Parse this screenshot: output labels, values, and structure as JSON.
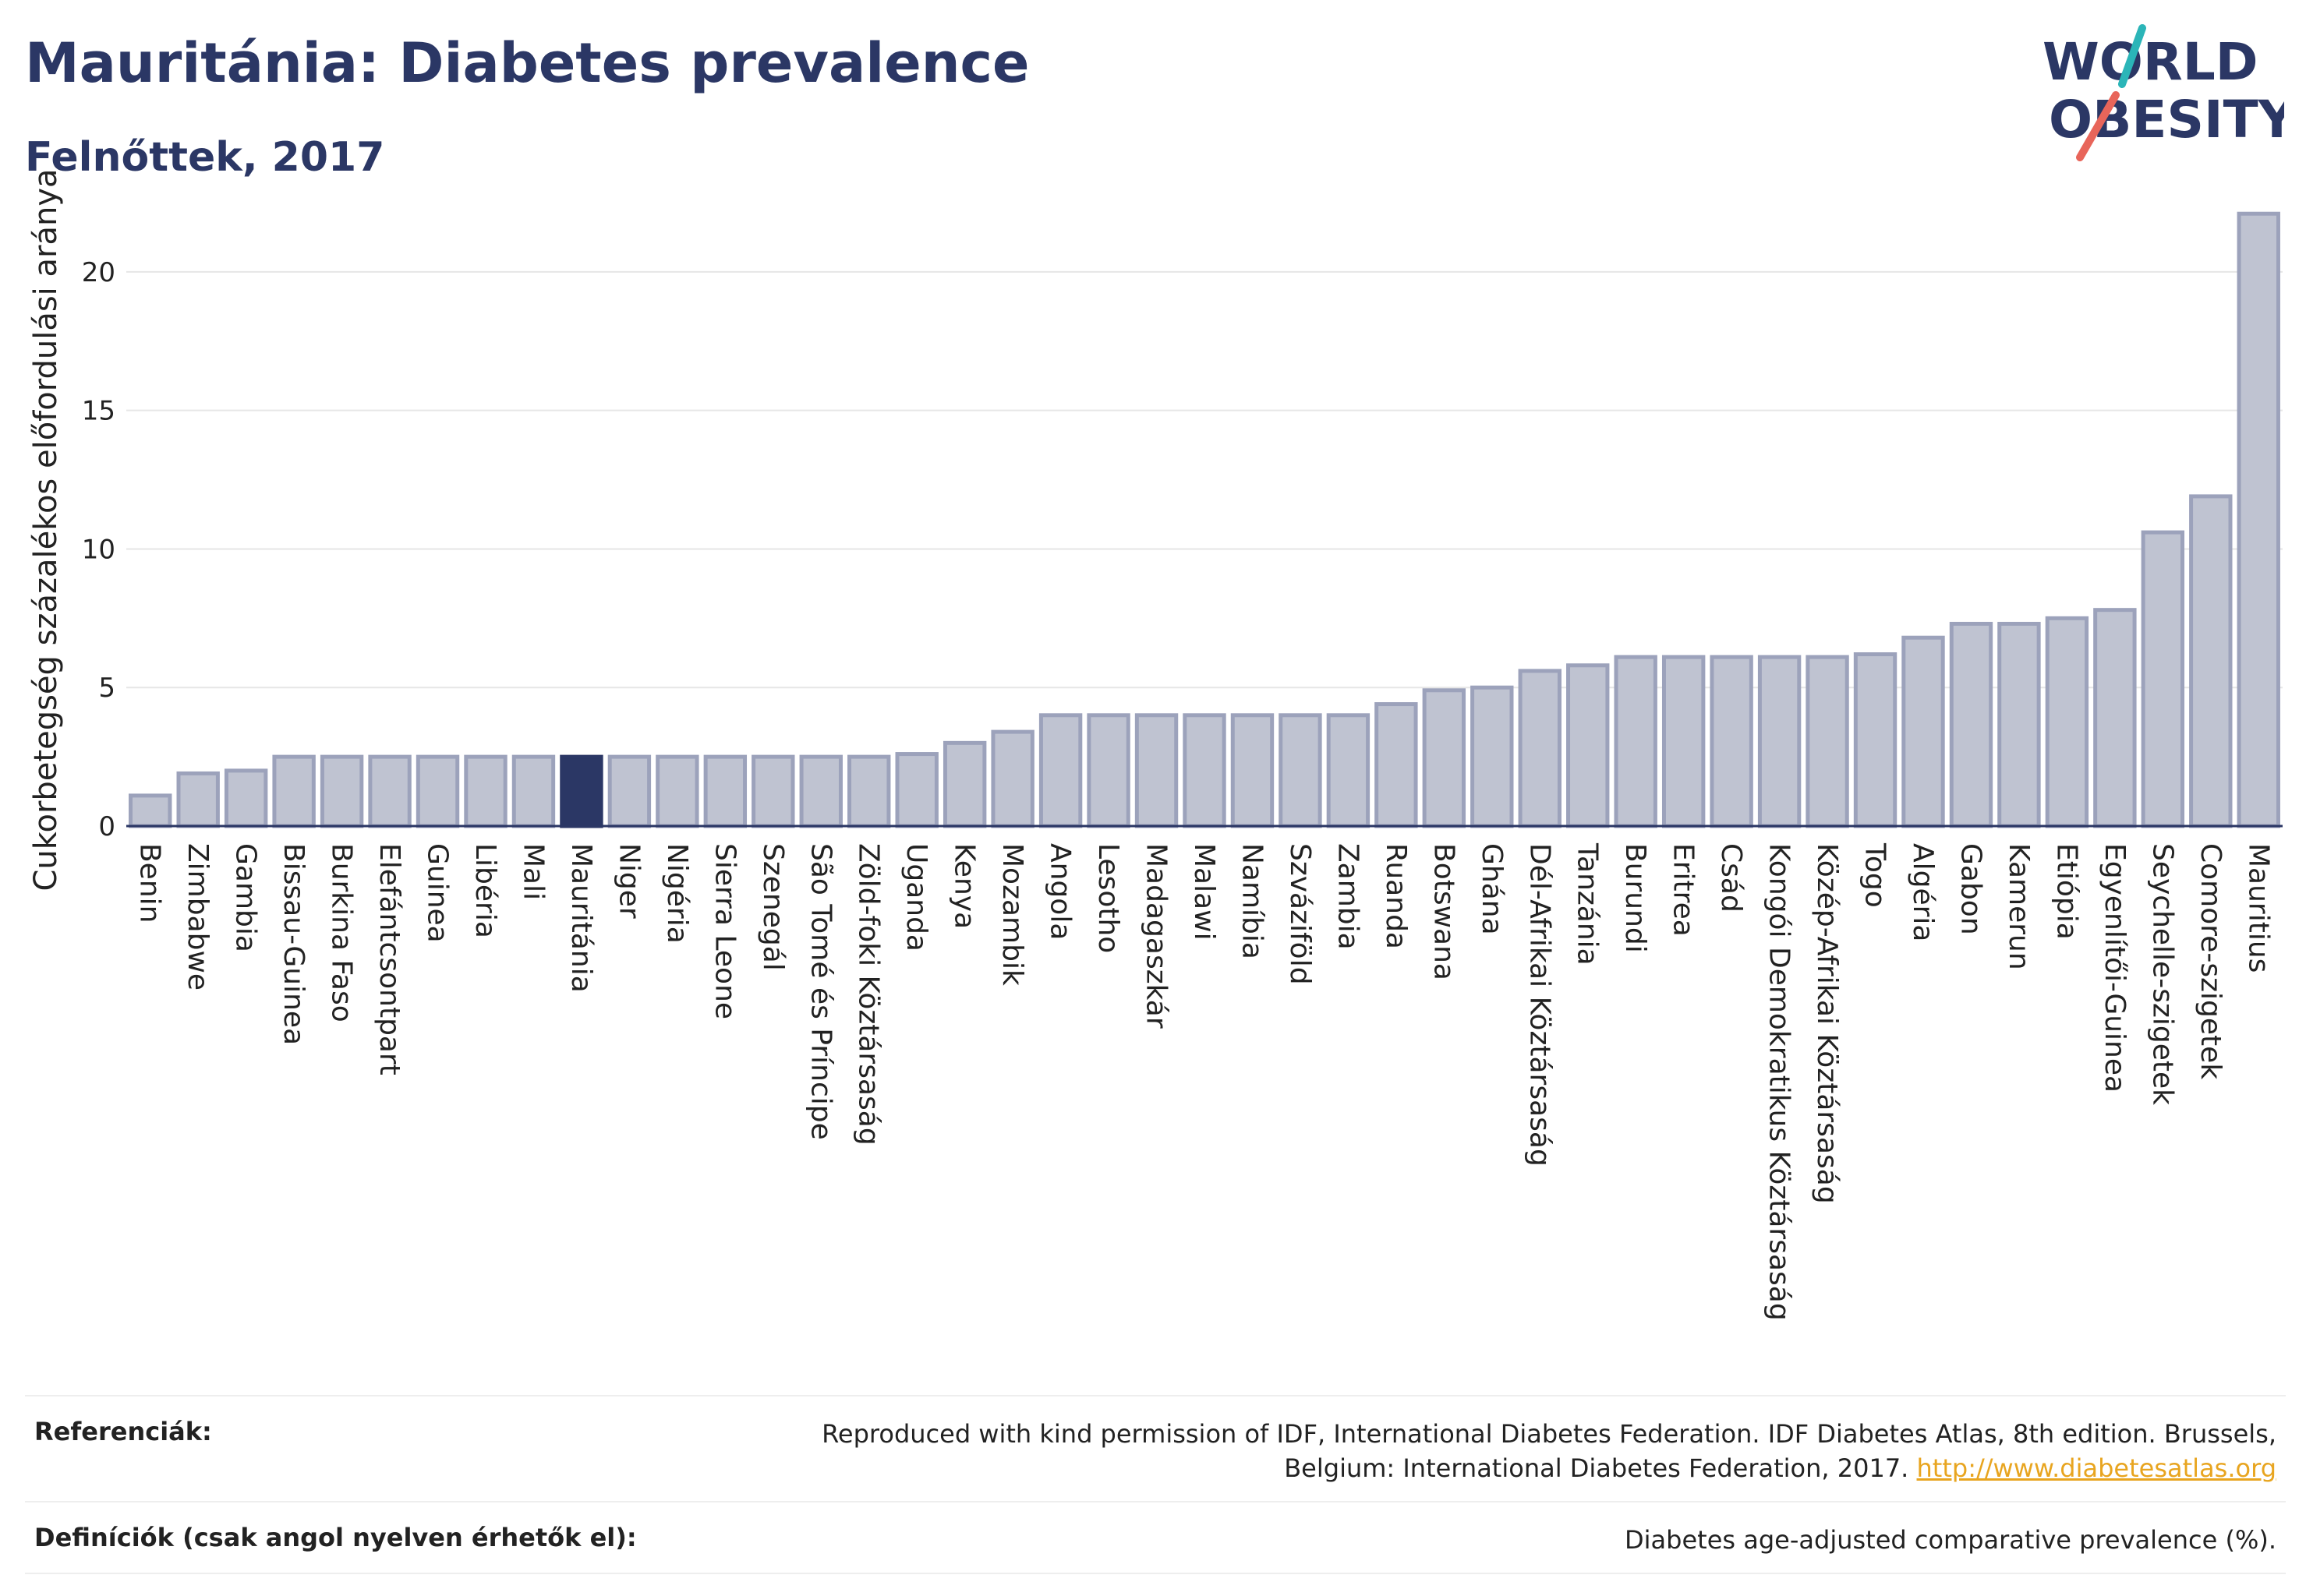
{
  "header": {
    "title": "Mauritánia: Diabetes prevalence",
    "subtitle": "Felnőttek, 2017"
  },
  "logo": {
    "line1": "WORLD",
    "line2": "OBESITY",
    "colors": {
      "text": "#2b3765",
      "teal": "#2bb5b8",
      "coral": "#e8655a"
    }
  },
  "chart_data": {
    "type": "bar",
    "ylabel": "Cukorbetegség százalékos előfordulási aránya",
    "ylim": [
      0,
      22.5
    ],
    "yticks": [
      0,
      5,
      10,
      15,
      20
    ],
    "grid": true,
    "highlight": "Mauritánia",
    "colors": {
      "bar": "#bfc3d1",
      "bar_stroke": "#9ca2bb",
      "highlight": "#2b3765"
    },
    "categories": [
      "Benin",
      "Zimbabwe",
      "Gambia",
      "Bissau-Guinea",
      "Burkina Faso",
      "Elefántcsontpart",
      "Guinea",
      "Libéria",
      "Mali",
      "Mauritánia",
      "Niger",
      "Nigéria",
      "Sierra Leone",
      "Szenegál",
      "São Tomé és Príncipe",
      "Zöld-foki Köztársaság",
      "Uganda",
      "Kenya",
      "Mozambik",
      "Angola",
      "Lesotho",
      "Madagaszkár",
      "Malawi",
      "Namíbia",
      "Szváziföld",
      "Zambia",
      "Ruanda",
      "Botswana",
      "Ghána",
      "Dél-Afrikai Köztársaság",
      "Tanzánia",
      "Burundi",
      "Eritrea",
      "Csád",
      "Kongói Demokratikus Köztársaság",
      "Közép-Afrikai Köztársaság",
      "Togo",
      "Algéria",
      "Gabon",
      "Kamerun",
      "Etiópia",
      "Egyenlítői-Guinea",
      "Seychelle-szigetek",
      "Comore-szigetek",
      "Mauritius"
    ],
    "values": [
      1.1,
      1.9,
      2.0,
      2.5,
      2.5,
      2.5,
      2.5,
      2.5,
      2.5,
      2.5,
      2.5,
      2.5,
      2.5,
      2.5,
      2.5,
      2.5,
      2.6,
      3.0,
      3.4,
      4.0,
      4.0,
      4.0,
      4.0,
      4.0,
      4.0,
      4.0,
      4.4,
      4.9,
      5.0,
      5.6,
      5.8,
      6.1,
      6.1,
      6.1,
      6.1,
      6.1,
      6.2,
      6.8,
      7.3,
      7.3,
      7.5,
      7.8,
      10.6,
      11.9,
      22.1
    ]
  },
  "footer": {
    "references_label": "Referenciák:",
    "references_text": "Reproduced with kind permission of IDF, International Diabetes Federation. IDF Diabetes Atlas, 8th edition. Brussels, Belgium: International Diabetes Federation, 2017.",
    "references_link": "http://www.diabetesatlas.org",
    "definitions_label": "Definíciók (csak angol nyelven érhetők el):",
    "definitions_text": "Diabetes age-adjusted comparative prevalence (%)."
  }
}
